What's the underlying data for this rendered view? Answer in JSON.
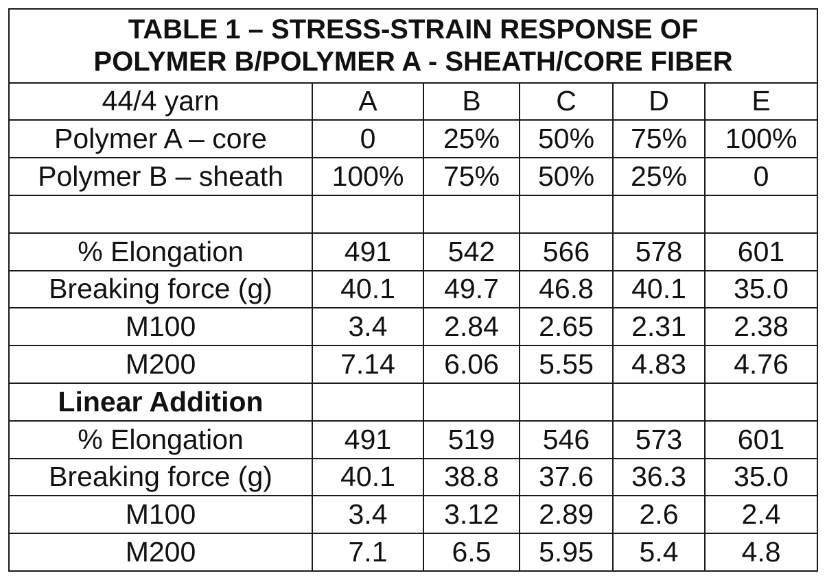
{
  "title": {
    "line1": "TABLE 1 – STRESS-STRAIN RESPONSE OF",
    "line2": "POLYMER B/POLYMER A - SHEATH/CORE FIBER"
  },
  "header": {
    "label": "44/4 yarn",
    "columns": [
      "A",
      "B",
      "C",
      "D",
      "E"
    ]
  },
  "composition": [
    {
      "label": "Polymer A – core",
      "values": [
        "0",
        "25%",
        "50%",
        "75%",
        "100%"
      ]
    },
    {
      "label": "Polymer B – sheath",
      "values": [
        "100%",
        "75%",
        "50%",
        "25%",
        "0"
      ]
    }
  ],
  "measured": [
    {
      "label": "% Elongation",
      "values": [
        "491",
        "542",
        "566",
        "578",
        "601"
      ]
    },
    {
      "label": "Breaking force (g)",
      "values": [
        "40.1",
        "49.7",
        "46.8",
        "40.1",
        "35.0"
      ]
    },
    {
      "label": "M100",
      "values": [
        "3.4",
        "2.84",
        "2.65",
        "2.31",
        "2.38"
      ]
    },
    {
      "label": "M200",
      "values": [
        "7.14",
        "6.06",
        "5.55",
        "4.83",
        "4.76"
      ]
    }
  ],
  "linear_section_label": "Linear Addition",
  "linear": [
    {
      "label": "% Elongation",
      "values": [
        "491",
        "519",
        "546",
        "573",
        "601"
      ]
    },
    {
      "label": "Breaking force (g)",
      "values": [
        "40.1",
        "38.8",
        "37.6",
        "36.3",
        "35.0"
      ]
    },
    {
      "label": "M100",
      "values": [
        "3.4",
        "3.12",
        "2.89",
        "2.6",
        "2.4"
      ]
    },
    {
      "label": "M200",
      "values": [
        "7.1",
        "6.5",
        "5.95",
        "5.4",
        "4.8"
      ]
    }
  ]
}
